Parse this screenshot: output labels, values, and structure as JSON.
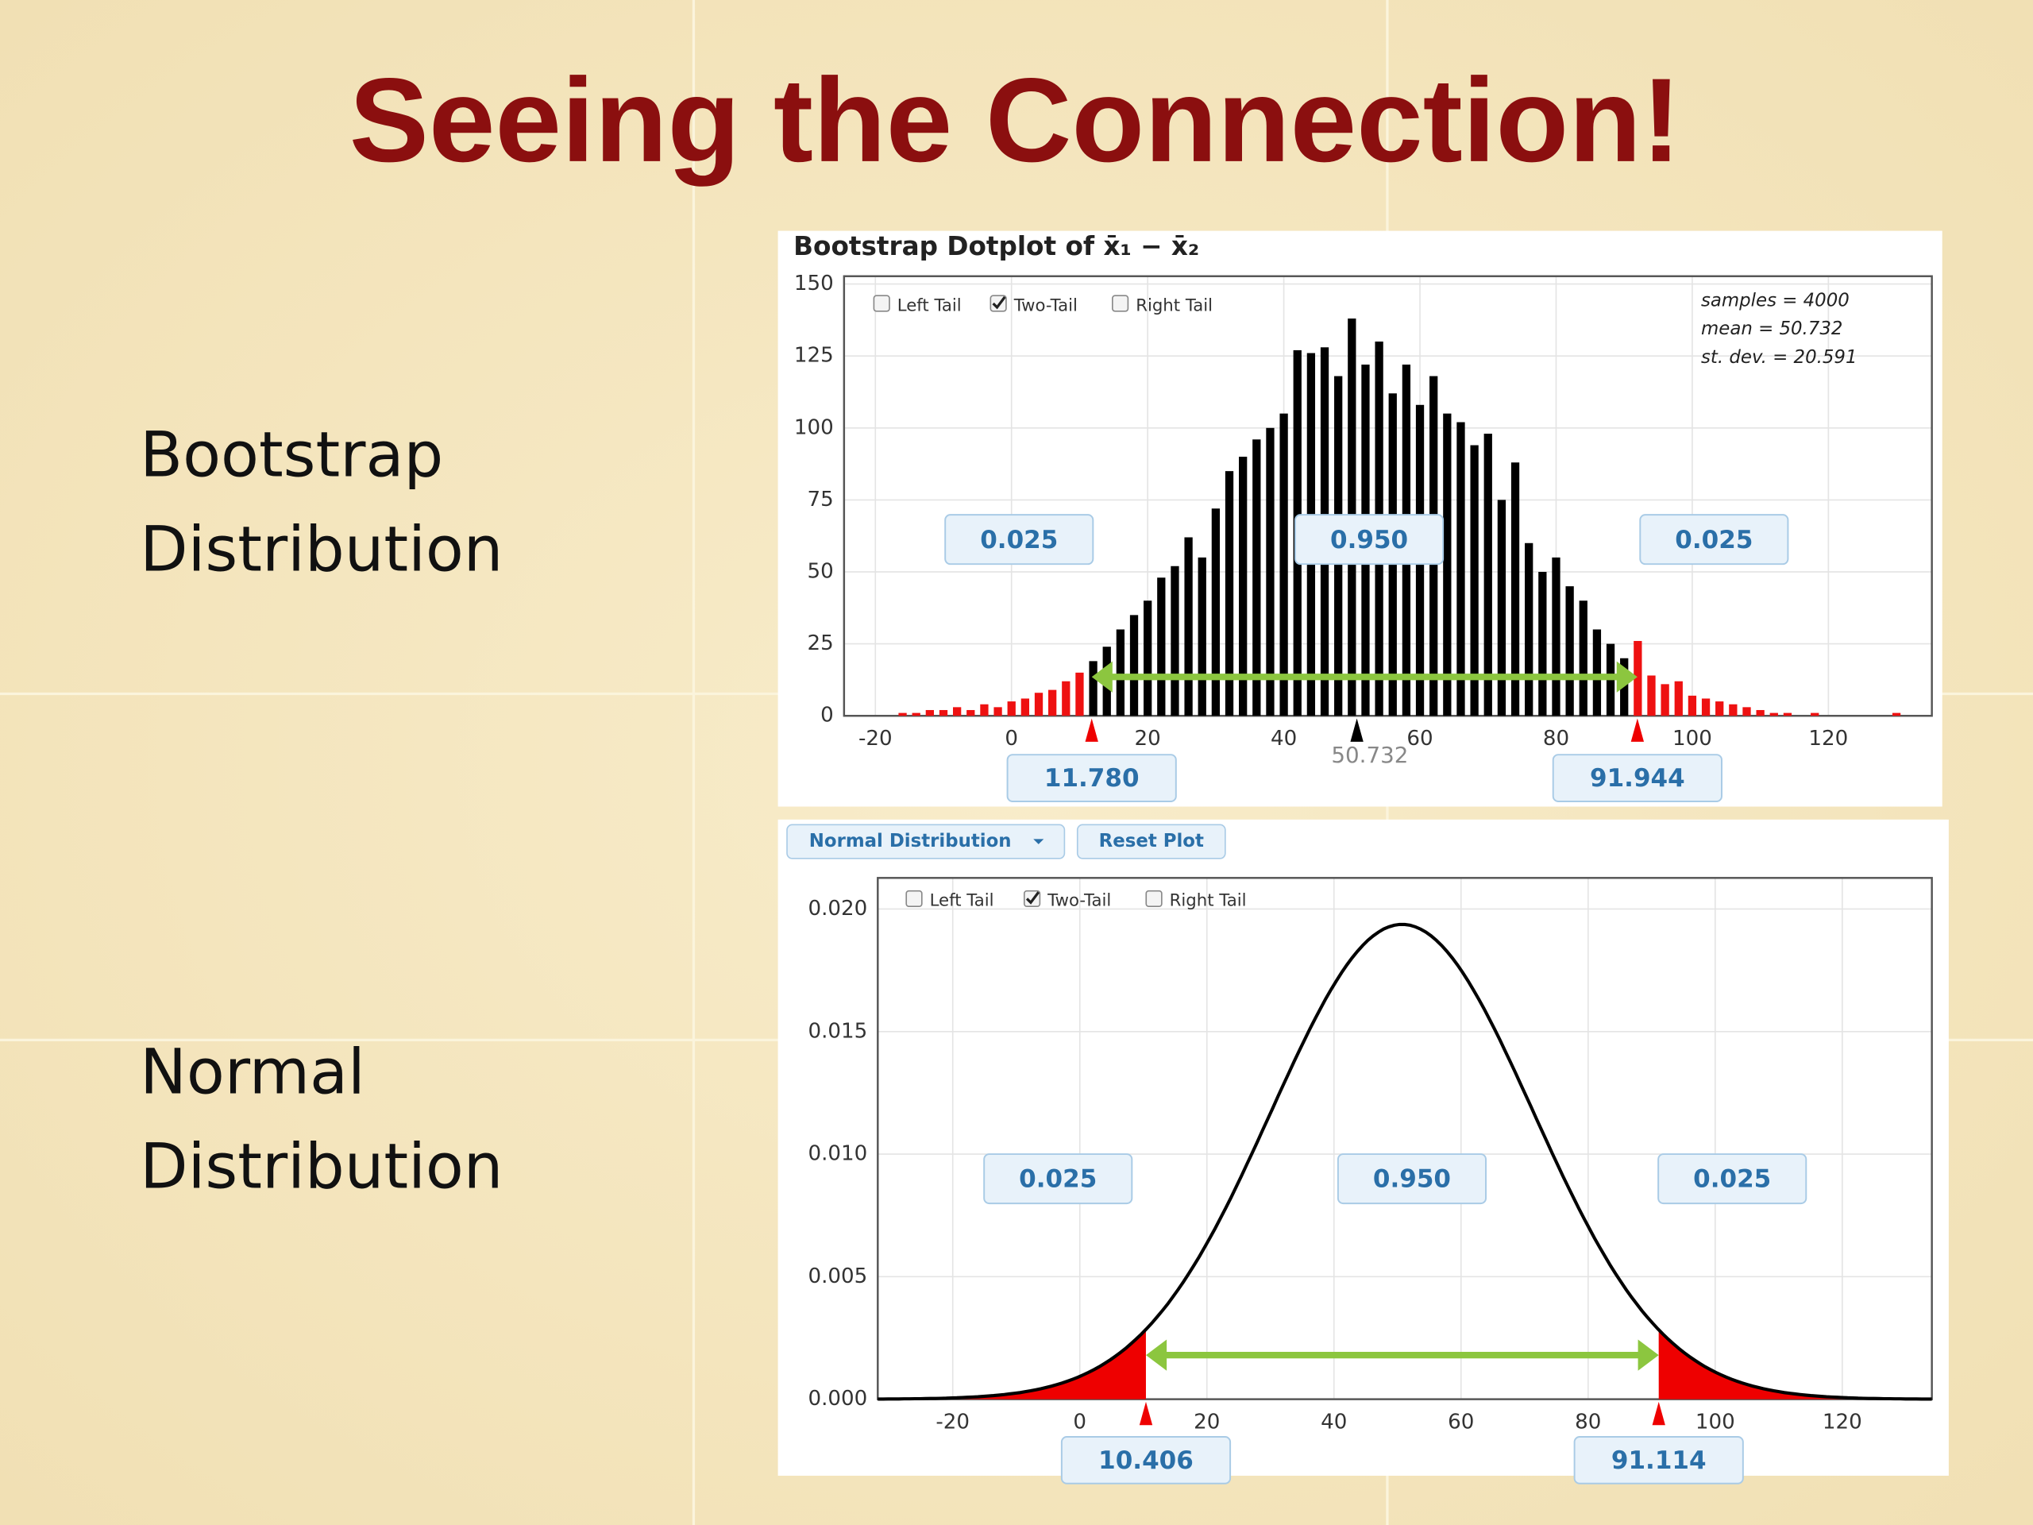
{
  "slide": {
    "title": "Seeing the Connection!",
    "labels": [
      [
        "Bootstrap",
        "Distribution"
      ],
      [
        "Normal",
        "Distribution"
      ]
    ]
  },
  "chart_data": [
    {
      "type": "dotplot",
      "title": "Bootstrap Dotplot of x̄₁ − x̄₂",
      "checkboxes": [
        {
          "label": "Left Tail",
          "checked": false
        },
        {
          "label": "Two-Tail",
          "checked": true
        },
        {
          "label": "Right Tail",
          "checked": false
        }
      ],
      "stats": [
        "samples = 4000",
        "mean = 50.732",
        "st. dev. = 20.591"
      ],
      "x": [
        -16,
        -14,
        -12,
        -10,
        -8,
        -6,
        -4,
        -2,
        0,
        2,
        4,
        6,
        8,
        10,
        12,
        14,
        16,
        18,
        20,
        22,
        24,
        26,
        28,
        30,
        32,
        34,
        36,
        38,
        40,
        42,
        44,
        46,
        48,
        50,
        52,
        54,
        56,
        58,
        60,
        62,
        64,
        66,
        68,
        70,
        72,
        74,
        76,
        78,
        80,
        82,
        84,
        86,
        88,
        90,
        92,
        94,
        96,
        98,
        100,
        102,
        104,
        106,
        108,
        110,
        112,
        114,
        116,
        118,
        120,
        122,
        124,
        126,
        128,
        130
      ],
      "values": [
        1,
        1,
        2,
        2,
        3,
        2,
        4,
        3,
        5,
        6,
        8,
        9,
        12,
        15,
        19,
        24,
        30,
        35,
        40,
        48,
        52,
        62,
        55,
        72,
        85,
        90,
        96,
        100,
        105,
        127,
        126,
        128,
        118,
        138,
        122,
        130,
        112,
        122,
        108,
        118,
        105,
        102,
        94,
        98,
        75,
        88,
        60,
        50,
        55,
        45,
        40,
        30,
        25,
        20,
        26,
        14,
        11,
        12,
        7,
        6,
        5,
        4,
        3,
        2,
        1,
        1,
        0,
        1,
        0,
        0,
        0,
        0,
        0,
        1
      ],
      "color": "#000000",
      "tail_color": "#ee1111",
      "mean": 50.732,
      "cutoffs": [
        {
          "value": 11.78,
          "label": "11.780"
        },
        {
          "value": 91.944,
          "label": "91.944"
        }
      ],
      "regions": [
        0.025,
        {
          "value": 0.95,
          "label": "0.950"
        },
        0.025
      ],
      "xlim": [
        -24.6,
        135.2
      ],
      "ylim": [
        0,
        150
      ],
      "xticks": [
        -20,
        0,
        20,
        40,
        60,
        80,
        100,
        120
      ],
      "yticks": [
        0,
        25,
        50,
        75,
        100,
        125,
        150
      ],
      "grid": true
    },
    {
      "type": "density",
      "buttons": [
        "Normal Distribution",
        "Reset Plot"
      ],
      "checkboxes": [
        {
          "label": "Left Tail",
          "checked": false
        },
        {
          "label": "Two-Tail",
          "checked": true
        },
        {
          "label": "Right Tail",
          "checked": false
        }
      ],
      "mean": 50.732,
      "sd": 20.591,
      "color": "#000000",
      "tail_color": "#ee0000",
      "cutoffs": [
        10.406,
        91.114
      ],
      "regions": [
        0.025,
        {
          "value": 0.95,
          "label": "0.950"
        },
        0.025
      ],
      "xlim": [
        -31.8,
        134.1
      ],
      "ylim": [
        0,
        0.02127
      ],
      "xticks": [
        -20,
        0,
        20,
        40,
        60,
        80,
        100,
        120
      ],
      "yticks": [
        {
          "value": 0,
          "label": "0.000"
        },
        {
          "value": 0.005,
          "label": "0.005"
        },
        {
          "value": 0.01,
          "label": "0.010"
        },
        {
          "value": 0.015,
          "label": "0.015"
        },
        {
          "value": 0.02,
          "label": "0.020"
        }
      ],
      "grid": true
    }
  ]
}
